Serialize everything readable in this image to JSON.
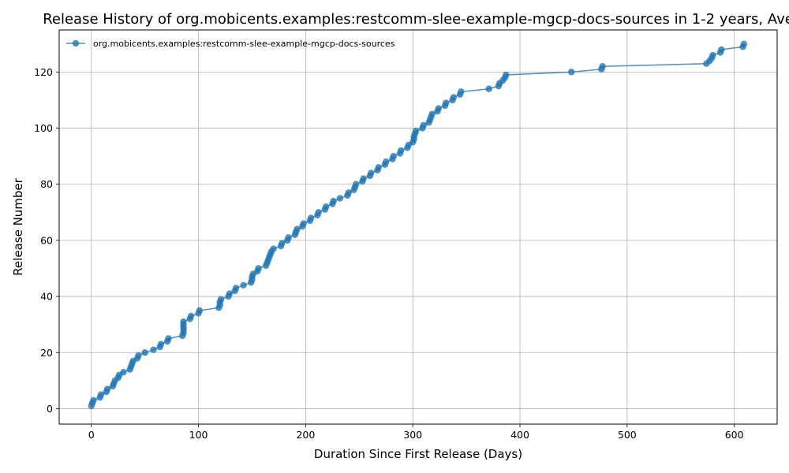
{
  "chart_data": {
    "type": "line",
    "title": "Release History of org.mobicents.examples:restcomm-slee-example-mgcp-docs-sources in 1-2 years, Ave",
    "xlabel": "Duration Since First Release (Days)",
    "ylabel": "Release Number",
    "xlim": [
      -30,
      640
    ],
    "ylim": [
      -5.5,
      135
    ],
    "xticks": [
      0,
      100,
      200,
      300,
      400,
      500,
      600
    ],
    "yticks": [
      0,
      20,
      40,
      60,
      80,
      100,
      120
    ],
    "grid": true,
    "legend_position": "top-left",
    "markers": true,
    "series": [
      {
        "name": "org.mobicents.examples:restcomm-slee-example-mgcp-docs-sources",
        "color": "#1f77b4",
        "x": [
          0,
          1,
          2,
          8,
          9,
          14,
          15,
          20,
          21,
          22,
          25,
          26,
          30,
          36,
          37,
          38,
          39,
          43,
          44,
          50,
          58,
          64,
          65,
          71,
          72,
          85,
          86,
          86,
          86,
          86,
          86,
          92,
          93,
          100,
          101,
          119,
          120,
          120,
          121,
          128,
          129,
          134,
          135,
          142,
          149,
          150,
          150,
          151,
          155,
          156,
          163,
          164,
          165,
          166,
          167,
          168,
          170,
          177,
          178,
          183,
          184,
          190,
          191,
          192,
          197,
          198,
          204,
          205,
          211,
          212,
          218,
          219,
          225,
          226,
          232,
          239,
          240,
          245,
          246,
          247,
          253,
          254,
          260,
          261,
          267,
          268,
          274,
          275,
          281,
          282,
          288,
          289,
          295,
          296,
          300,
          301,
          301,
          302,
          303,
          309,
          310,
          315,
          316,
          317,
          318,
          323,
          324,
          330,
          331,
          337,
          338,
          344,
          345,
          371,
          380,
          381,
          384,
          386,
          387,
          448,
          476,
          477,
          574,
          577,
          579,
          580,
          587,
          588,
          608,
          609
        ],
        "values": [
          1,
          2,
          3,
          4,
          5,
          6,
          7,
          8,
          9,
          10,
          11,
          12,
          13,
          14,
          15,
          16,
          17,
          18,
          19,
          20,
          21,
          22,
          23,
          24,
          25,
          26,
          27,
          28,
          29,
          30,
          31,
          32,
          33,
          34,
          35,
          36,
          37,
          38,
          39,
          40,
          41,
          42,
          43,
          44,
          45,
          46,
          47,
          48,
          49,
          50,
          51,
          52,
          53,
          54,
          55,
          56,
          57,
          58,
          59,
          60,
          61,
          62,
          63,
          64,
          65,
          66,
          67,
          68,
          69,
          70,
          71,
          72,
          73,
          74,
          75,
          76,
          77,
          78,
          79,
          80,
          81,
          82,
          83,
          84,
          85,
          86,
          87,
          88,
          89,
          90,
          91,
          92,
          93,
          94,
          95,
          96,
          97,
          98,
          99,
          100,
          101,
          102,
          103,
          104,
          105,
          106,
          107,
          108,
          109,
          110,
          111,
          112,
          113,
          114,
          115,
          116,
          117,
          118,
          119,
          120,
          121,
          122,
          123,
          124,
          125,
          126,
          127,
          128,
          129,
          130
        ]
      }
    ]
  }
}
